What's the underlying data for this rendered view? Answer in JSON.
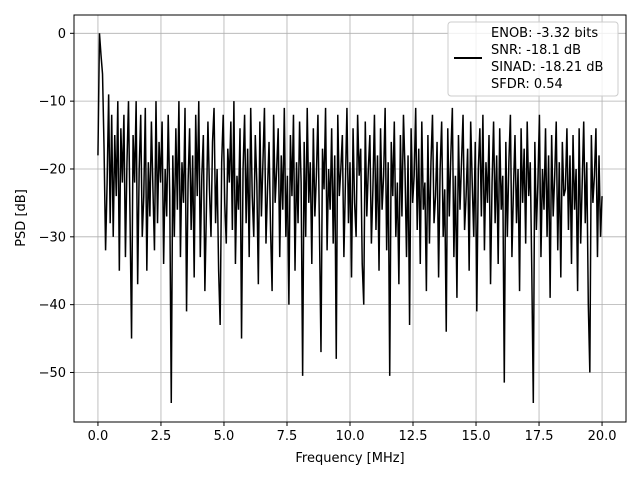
{
  "chart_data": {
    "type": "line",
    "title": "",
    "xlabel": "Frequency [MHz]",
    "ylabel": "PSD [dB]",
    "xlim": [
      -0.95,
      20.95
    ],
    "ylim": [
      -57.3,
      2.7
    ],
    "grid": true,
    "legend_position": "top-right",
    "line_color": "#000000",
    "x_ticks": [
      0.0,
      2.5,
      5.0,
      7.5,
      10.0,
      12.5,
      15.0,
      17.5,
      20.0
    ],
    "x_tick_labels": [
      "0.0",
      "2.5",
      "5.0",
      "7.5",
      "10.0",
      "12.5",
      "15.0",
      "17.5",
      "20.0"
    ],
    "y_ticks": [
      0,
      -10,
      -20,
      -30,
      -40,
      -50
    ],
    "y_tick_labels": [
      "0",
      "−10",
      "−20",
      "−30",
      "−40",
      "−50"
    ],
    "legend_lines": [
      "ENOB: -3.32 bits",
      "SNR: -18.1 dB",
      "SINAD: -18.21 dB",
      "SFDR: 0.54"
    ],
    "series": [
      {
        "x_start": 0.0,
        "x_end": 20.0,
        "values": [
          -18,
          0,
          -3.2,
          -6,
          -17,
          -32,
          -22,
          -9,
          -28,
          -12,
          -30,
          -15,
          -24,
          -10,
          -35,
          -14,
          -22,
          -12,
          -33,
          -19,
          -10,
          -27,
          -45,
          -15,
          -22,
          -10,
          -37,
          -20,
          -12,
          -30,
          -24,
          -11,
          -35,
          -19,
          -27,
          -13,
          -23,
          -32,
          -10,
          -28,
          -16,
          -22,
          -13,
          -34,
          -20,
          -27,
          -12,
          -24,
          -54.5,
          -18,
          -30,
          -14,
          -26,
          -10,
          -33,
          -19,
          -25,
          -11,
          -41,
          -22,
          -14,
          -29,
          -18,
          -36,
          -12,
          -24,
          -10,
          -33,
          -21,
          -15,
          -38,
          -26,
          -13,
          -23,
          -30,
          -16,
          -11,
          -28,
          -20,
          -35,
          -43,
          -19,
          -12,
          -25,
          -31,
          -17,
          -22,
          -13,
          -29,
          -10,
          -34,
          -21,
          -26,
          -14,
          -45,
          -20,
          -12,
          -28,
          -17,
          -33,
          -11,
          -24,
          -30,
          -15,
          -22,
          -37,
          -13,
          -27,
          -19,
          -11,
          -31,
          -23,
          -16,
          -29,
          -38,
          -12,
          -25,
          -20,
          -14,
          -33,
          -18,
          -26,
          -11,
          -30,
          -21,
          -40,
          -15,
          -24,
          -12,
          -35,
          -19,
          -28,
          -13,
          -22,
          -50.5,
          -16,
          -30,
          -11,
          -25,
          -19,
          -34,
          -14,
          -27,
          -21,
          -12,
          -29,
          -47,
          -17,
          -23,
          -11,
          -32,
          -20,
          -26,
          -14,
          -31,
          -18,
          -48,
          -12,
          -24,
          -20,
          -15,
          -33,
          -22,
          -11,
          -28,
          -19,
          -36,
          -14,
          -25,
          -30,
          -12,
          -21,
          -17,
          -34,
          -40,
          -13,
          -27,
          -20,
          -15,
          -31,
          -23,
          -12,
          -29,
          -18,
          -35,
          -14,
          -26,
          -21,
          -11,
          -32,
          -19,
          -50.5,
          -16,
          -24,
          -13,
          -30,
          -22,
          -37,
          -15,
          -27,
          -12,
          -20,
          -33,
          -18,
          -43,
          -14,
          -25,
          -21,
          -11,
          -29,
          -17,
          -34,
          -13,
          -26,
          -22,
          -38,
          -15,
          -31,
          -19,
          -12,
          -28,
          -24,
          -16,
          -36,
          -20,
          -13,
          -30,
          -23,
          -44,
          -14,
          -27,
          -18,
          -11,
          -33,
          -21,
          -39,
          -15,
          -26,
          -19,
          -12,
          -29,
          -24,
          -17,
          -35,
          -13,
          -22,
          -30,
          -16,
          -41,
          -20,
          -14,
          -27,
          -12,
          -32,
          -19,
          -25,
          -15,
          -37,
          -22,
          -13,
          -28,
          -18,
          -34,
          -14,
          -26,
          -21,
          -51.5,
          -16,
          -30,
          -19,
          -12,
          -33,
          -23,
          -15,
          -28,
          -20,
          -38,
          -14,
          -25,
          -17,
          -31,
          -13,
          -24,
          -19,
          -35,
          -54.5,
          -16,
          -29,
          -22,
          -12,
          -33,
          -20,
          -26,
          -14,
          -30,
          -18,
          -39,
          -15,
          -27,
          -21,
          -13,
          -32,
          -19,
          -36,
          -16,
          -24,
          -23,
          -14,
          -29,
          -18,
          -34,
          -15,
          -26,
          -20,
          -38,
          -14,
          -31,
          -22,
          -13,
          -28,
          -19,
          -40,
          -50,
          -15,
          -25,
          -21,
          -14,
          -33,
          -18,
          -30,
          -24
        ]
      }
    ]
  }
}
